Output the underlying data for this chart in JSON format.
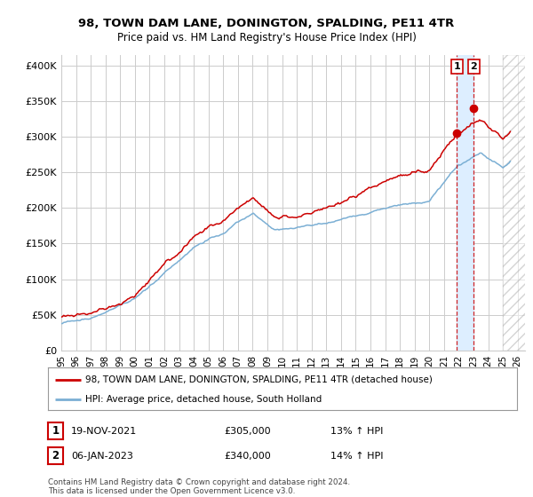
{
  "title": "98, TOWN DAM LANE, DONINGTON, SPALDING, PE11 4TR",
  "subtitle": "Price paid vs. HM Land Registry's House Price Index (HPI)",
  "ylabel_ticks": [
    "£0",
    "£50K",
    "£100K",
    "£150K",
    "£200K",
    "£250K",
    "£300K",
    "£350K",
    "£400K"
  ],
  "ytick_vals": [
    0,
    50000,
    100000,
    150000,
    200000,
    250000,
    300000,
    350000,
    400000
  ],
  "ylim": [
    0,
    415000
  ],
  "xlim_start": 1995.0,
  "xlim_end": 2026.5,
  "sale1_date": 2021.88,
  "sale1_price": 305000,
  "sale2_date": 2023.02,
  "sale2_price": 340000,
  "hatch_start": 2025.0,
  "legend_line1": "98, TOWN DAM LANE, DONINGTON, SPALDING, PE11 4TR (detached house)",
  "legend_line2": "HPI: Average price, detached house, South Holland",
  "table_row1": [
    "1",
    "19-NOV-2021",
    "£305,000",
    "13% ↑ HPI"
  ],
  "table_row2": [
    "2",
    "06-JAN-2023",
    "£340,000",
    "14% ↑ HPI"
  ],
  "footnote": "Contains HM Land Registry data © Crown copyright and database right 2024.\nThis data is licensed under the Open Government Licence v3.0.",
  "price_color": "#cc0000",
  "hpi_color": "#7bafd4",
  "vline_color": "#cc0000",
  "shade_color": "#ddeeff",
  "background_color": "#ffffff",
  "grid_color": "#cccccc",
  "xtick_labels": [
    "95",
    "96",
    "97",
    "98",
    "99",
    "00",
    "01",
    "02",
    "03",
    "04",
    "05",
    "06",
    "07",
    "08",
    "09",
    "10",
    "11",
    "12",
    "13",
    "14",
    "15",
    "16",
    "17",
    "18",
    "19",
    "20",
    "21",
    "22",
    "23",
    "24",
    "25",
    "26"
  ],
  "xtick_vals": [
    1995,
    1996,
    1997,
    1998,
    1999,
    2000,
    2001,
    2002,
    2003,
    2004,
    2005,
    2006,
    2007,
    2008,
    2009,
    2010,
    2011,
    2012,
    2013,
    2014,
    2015,
    2016,
    2017,
    2018,
    2019,
    2020,
    2021,
    2022,
    2023,
    2024,
    2025,
    2026
  ]
}
